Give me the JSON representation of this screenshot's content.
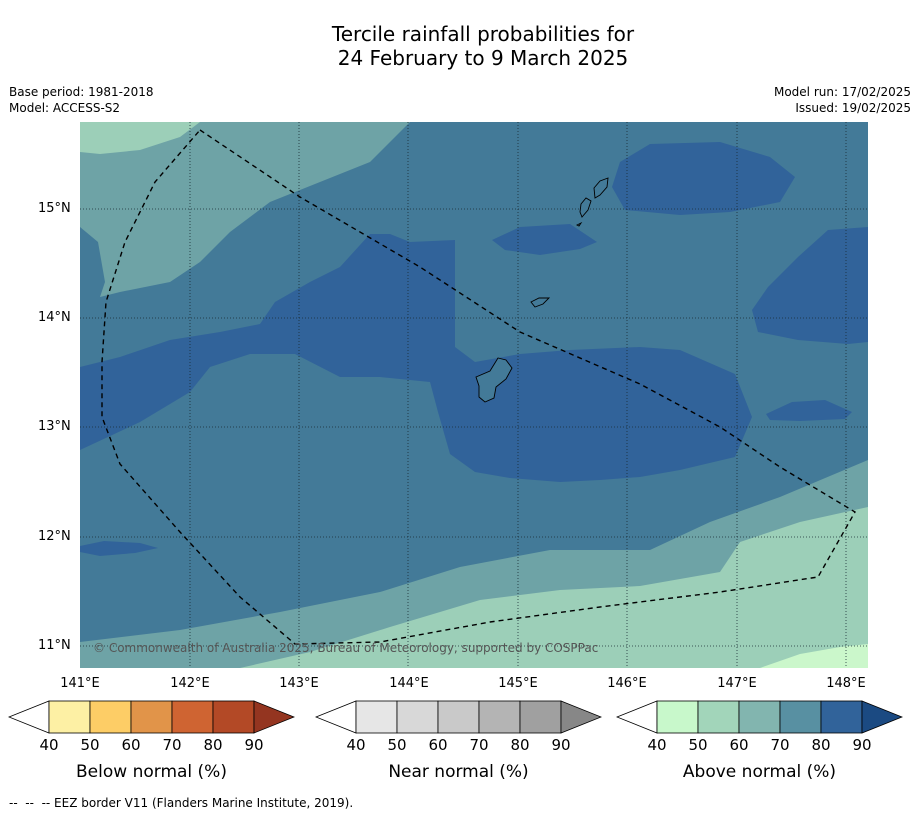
{
  "title_line1": "Tercile rainfall probabilities for",
  "title_line2": "24 February to 9 March 2025",
  "meta": {
    "base_period": "Base period: 1981-2018",
    "model": "Model: ACCESS-S2",
    "model_run": "Model run: 17/02/2025",
    "issued": "Issued: 19/02/2025"
  },
  "map": {
    "latitude_labels": [
      "15°N",
      "14°N",
      "13°N",
      "12°N",
      "11°N"
    ],
    "longitude_labels": [
      "141°E",
      "142°E",
      "143°E",
      "144°E",
      "145°E",
      "146°E",
      "147°E",
      "148°E"
    ],
    "copyright": "© Commonwealth of Australia 2025, Bureau of Meteorology, supported by COSPPac",
    "colors": {
      "above_50_60": "#9ccfb8",
      "above_60_70": "#6ea3a6",
      "above_70_80": "#437a98",
      "above_80_90": "#31639a",
      "above_40_50": "#cbf7cb",
      "land_outline": "#000000",
      "eez_border": "#000000"
    }
  },
  "colorbars": [
    {
      "name": "below",
      "title": "Below normal (%)",
      "ticks": [
        "40",
        "50",
        "60",
        "70",
        "80",
        "90"
      ],
      "colors": [
        "#ffffff",
        "#fdf0a4",
        "#fdcd66",
        "#e19449",
        "#cf6432",
        "#b34926",
        "#943520"
      ]
    },
    {
      "name": "near",
      "title": "Near normal (%)",
      "ticks": [
        "40",
        "50",
        "60",
        "70",
        "80",
        "90"
      ],
      "colors": [
        "#ffffff",
        "#e6e6e6",
        "#d8d8d8",
        "#c9c9c9",
        "#b4b4b4",
        "#a0a0a0",
        "#878787"
      ]
    },
    {
      "name": "above",
      "title": "Above normal (%)",
      "ticks": [
        "40",
        "50",
        "60",
        "70",
        "80",
        "90"
      ],
      "colors": [
        "#ffffff",
        "#c8f8cb",
        "#a2d5ba",
        "#82b5af",
        "#5890a2",
        "#31639a",
        "#1b4a82"
      ]
    }
  ],
  "footnote": "--  --  -- EEZ border V11 (Flanders Marine Institute, 2019)."
}
